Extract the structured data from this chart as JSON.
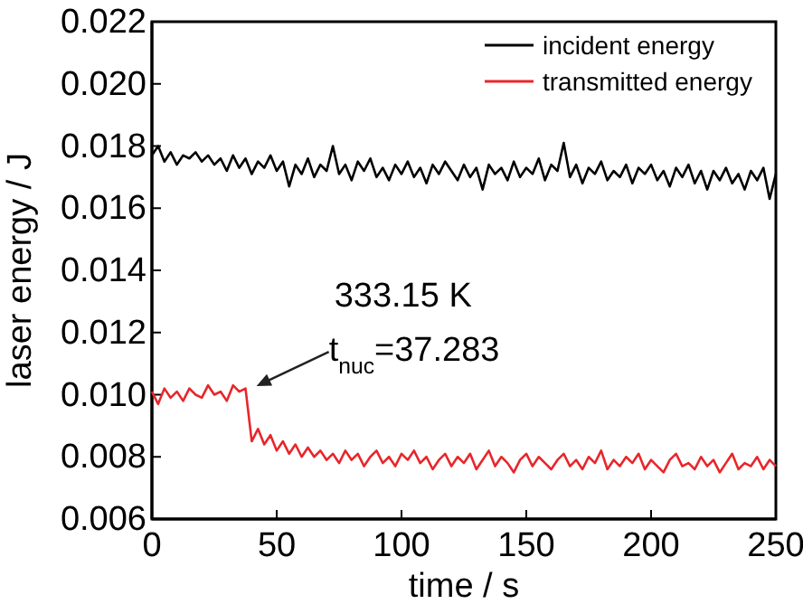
{
  "chart_data": {
    "type": "line",
    "xlabel": "time / s",
    "ylabel": "laser energy / J",
    "x": [
      0,
      2.5,
      5,
      7.5,
      10,
      12.5,
      15,
      17.5,
      20,
      22.5,
      25,
      27.5,
      30,
      32.5,
      35,
      37.5,
      40,
      42.5,
      45,
      47.5,
      50,
      52.5,
      55,
      57.5,
      60,
      62.5,
      65,
      67.5,
      70,
      72.5,
      75,
      77.5,
      80,
      82.5,
      85,
      87.5,
      90,
      92.5,
      95,
      97.5,
      100,
      102.5,
      105,
      107.5,
      110,
      112.5,
      115,
      117.5,
      120,
      122.5,
      125,
      127.5,
      130,
      132.5,
      135,
      137.5,
      140,
      142.5,
      145,
      147.5,
      150,
      152.5,
      155,
      157.5,
      160,
      162.5,
      165,
      167.5,
      170,
      172.5,
      175,
      177.5,
      180,
      182.5,
      185,
      187.5,
      190,
      192.5,
      195,
      197.5,
      200,
      202.5,
      205,
      207.5,
      210,
      212.5,
      215,
      217.5,
      220,
      222.5,
      225,
      227.5,
      230,
      232.5,
      235,
      237.5,
      240,
      242.5,
      245,
      247.5,
      250
    ],
    "series": [
      {
        "name": "incident energy",
        "color": "#000000",
        "values": [
          0.0177,
          0.018,
          0.0175,
          0.0178,
          0.0174,
          0.0177,
          0.0176,
          0.0178,
          0.0175,
          0.0177,
          0.0174,
          0.0176,
          0.0172,
          0.0177,
          0.0173,
          0.0176,
          0.0171,
          0.0175,
          0.0173,
          0.0177,
          0.0172,
          0.0175,
          0.0167,
          0.0174,
          0.0171,
          0.0176,
          0.017,
          0.0174,
          0.0172,
          0.018,
          0.0171,
          0.0174,
          0.0169,
          0.0175,
          0.0172,
          0.0176,
          0.017,
          0.0173,
          0.0169,
          0.0174,
          0.0171,
          0.0175,
          0.017,
          0.0173,
          0.0168,
          0.0174,
          0.0171,
          0.0175,
          0.0172,
          0.0169,
          0.0174,
          0.017,
          0.0173,
          0.0166,
          0.0174,
          0.0171,
          0.0173,
          0.0169,
          0.0175,
          0.017,
          0.0173,
          0.0171,
          0.0176,
          0.0169,
          0.0174,
          0.0172,
          0.0181,
          0.017,
          0.0174,
          0.0168,
          0.0173,
          0.0171,
          0.0175,
          0.0169,
          0.0172,
          0.017,
          0.0174,
          0.0168,
          0.0173,
          0.0171,
          0.0174,
          0.0169,
          0.0172,
          0.0167,
          0.0173,
          0.017,
          0.0174,
          0.0168,
          0.0172,
          0.0166,
          0.0172,
          0.0169,
          0.0173,
          0.0168,
          0.0171,
          0.0166,
          0.0172,
          0.0169,
          0.0173,
          0.0163,
          0.0171
        ]
      },
      {
        "name": "transmitted energy",
        "color": "#e8262b",
        "values": [
          0.0101,
          0.0097,
          0.0102,
          0.0099,
          0.0101,
          0.0098,
          0.0102,
          0.01,
          0.0099,
          0.0103,
          0.01,
          0.0101,
          0.0098,
          0.0103,
          0.0101,
          0.0102,
          0.0085,
          0.0089,
          0.0084,
          0.0087,
          0.0082,
          0.0085,
          0.0081,
          0.0084,
          0.008,
          0.0083,
          0.008,
          0.0082,
          0.0079,
          0.0081,
          0.0078,
          0.0082,
          0.0079,
          0.0081,
          0.0077,
          0.008,
          0.0082,
          0.0078,
          0.008,
          0.0077,
          0.0081,
          0.0079,
          0.0082,
          0.0078,
          0.008,
          0.0076,
          0.0079,
          0.0081,
          0.0077,
          0.008,
          0.0078,
          0.0081,
          0.0076,
          0.0079,
          0.0082,
          0.0077,
          0.008,
          0.0078,
          0.0075,
          0.0079,
          0.0081,
          0.0077,
          0.008,
          0.0078,
          0.0076,
          0.0079,
          0.0081,
          0.0077,
          0.0079,
          0.0076,
          0.008,
          0.0078,
          0.0082,
          0.0076,
          0.0079,
          0.0077,
          0.008,
          0.0078,
          0.0081,
          0.0076,
          0.0079,
          0.0077,
          0.0075,
          0.0079,
          0.0081,
          0.0077,
          0.0078,
          0.0076,
          0.008,
          0.0077,
          0.0079,
          0.0075,
          0.0078,
          0.0081,
          0.0076,
          0.0078,
          0.0077,
          0.008,
          0.0076,
          0.0079,
          0.0077
        ]
      }
    ],
    "xlim": [
      0,
      250
    ],
    "xticks": [
      0,
      50,
      100,
      150,
      200,
      250
    ],
    "ylim": [
      0.006,
      0.022
    ],
    "yticks": [
      {
        "value": 0.006,
        "label": "0.006"
      },
      {
        "value": 0.008,
        "label": "0.008"
      },
      {
        "value": 0.01,
        "label": "0.010"
      },
      {
        "value": 0.012,
        "label": "0.012"
      },
      {
        "value": 0.014,
        "label": "0.014"
      },
      {
        "value": 0.016,
        "label": "0.016"
      },
      {
        "value": 0.018,
        "label": "0.018"
      },
      {
        "value": 0.02,
        "label": "0.020"
      },
      {
        "value": 0.022,
        "label": "0.022"
      }
    ],
    "legend": "top right",
    "grid": false,
    "line_style": "solid",
    "marker": "none",
    "annotations": [
      {
        "text": "333.15 K\nt$_{nuc}$=37.283",
        "x": 39,
        "y": 0.0101
      }
    ]
  }
}
